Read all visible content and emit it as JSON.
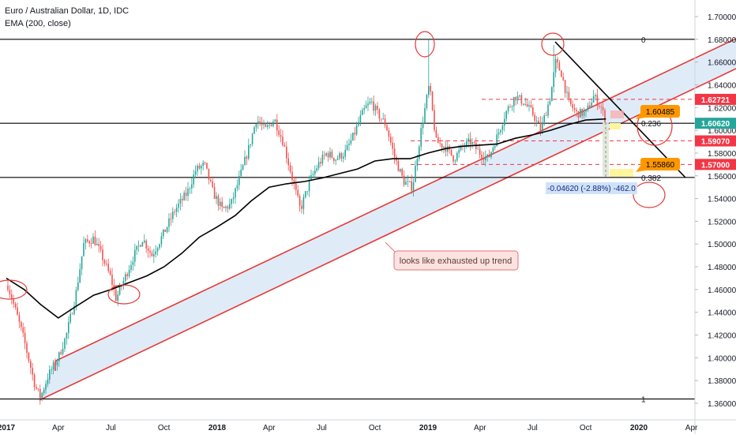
{
  "header": {
    "symbol_title": "Euro / Australian Dollar, 1D, IDC",
    "indicator": "EMA (200, close)"
  },
  "chart_data": {
    "type": "candlestick",
    "title": "Euro / Australian Dollar, 1D, IDC",
    "indicator": "EMA (200, close)",
    "grid": false,
    "ylim": [
      1.355,
      1.71
    ],
    "x_range": [
      "2017-01-01",
      "2020-04-30"
    ],
    "y_ticks": [
      "1.70000",
      "1.68000",
      "1.66000",
      "1.64000",
      "1.62000",
      "1.60000",
      "1.58000",
      "1.56000",
      "1.54000",
      "1.52000",
      "1.50000",
      "1.48000",
      "1.46000",
      "1.44000",
      "1.42000",
      "1.40000",
      "1.38000",
      "1.36000"
    ],
    "x_ticks": [
      {
        "label": "2017",
        "date": "2017-01-01"
      },
      {
        "label": "Apr",
        "date": "2017-04-01"
      },
      {
        "label": "Jul",
        "date": "2017-07-01"
      },
      {
        "label": "Oct",
        "date": "2017-10-01"
      },
      {
        "label": "2018",
        "date": "2018-01-01"
      },
      {
        "label": "Apr",
        "date": "2018-04-01"
      },
      {
        "label": "Jul",
        "date": "2018-07-01"
      },
      {
        "label": "Oct",
        "date": "2018-10-01"
      },
      {
        "label": "2019",
        "date": "2019-01-01"
      },
      {
        "label": "Apr",
        "date": "2019-04-01"
      },
      {
        "label": "Jul",
        "date": "2019-07-01"
      },
      {
        "label": "Oct",
        "date": "2019-10-01"
      },
      {
        "label": "2020",
        "date": "2020-01-01"
      },
      {
        "label": "Apr",
        "date": "2020-04-01"
      }
    ],
    "price_path": [
      [
        "2017-01-01",
        1.468
      ],
      [
        "2017-01-15",
        1.445
      ],
      [
        "2017-02-01",
        1.415
      ],
      [
        "2017-02-20",
        1.375
      ],
      [
        "2017-03-01",
        1.365
      ],
      [
        "2017-03-15",
        1.385
      ],
      [
        "2017-04-01",
        1.4
      ],
      [
        "2017-04-15",
        1.42
      ],
      [
        "2017-05-01",
        1.455
      ],
      [
        "2017-05-15",
        1.5
      ],
      [
        "2017-06-01",
        1.505
      ],
      [
        "2017-06-15",
        1.49
      ],
      [
        "2017-07-01",
        1.47
      ],
      [
        "2017-07-10",
        1.452
      ],
      [
        "2017-07-25",
        1.47
      ],
      [
        "2017-08-10",
        1.49
      ],
      [
        "2017-08-25",
        1.505
      ],
      [
        "2017-09-10",
        1.49
      ],
      [
        "2017-10-01",
        1.51
      ],
      [
        "2017-10-20",
        1.53
      ],
      [
        "2017-11-10",
        1.545
      ],
      [
        "2017-11-25",
        1.565
      ],
      [
        "2017-12-10",
        1.57
      ],
      [
        "2017-12-25",
        1.545
      ],
      [
        "2018-01-10",
        1.53
      ],
      [
        "2018-01-25",
        1.535
      ],
      [
        "2018-02-10",
        1.56
      ],
      [
        "2018-02-25",
        1.585
      ],
      [
        "2018-03-10",
        1.61
      ],
      [
        "2018-03-25",
        1.6
      ],
      [
        "2018-04-10",
        1.61
      ],
      [
        "2018-04-25",
        1.59
      ],
      [
        "2018-05-10",
        1.56
      ],
      [
        "2018-05-25",
        1.53
      ],
      [
        "2018-06-10",
        1.555
      ],
      [
        "2018-06-25",
        1.57
      ],
      [
        "2018-07-10",
        1.58
      ],
      [
        "2018-07-25",
        1.575
      ],
      [
        "2018-08-10",
        1.58
      ],
      [
        "2018-08-25",
        1.595
      ],
      [
        "2018-09-05",
        1.61
      ],
      [
        "2018-09-15",
        1.62
      ],
      [
        "2018-09-25",
        1.625
      ],
      [
        "2018-10-05",
        1.615
      ],
      [
        "2018-10-20",
        1.605
      ],
      [
        "2018-11-05",
        1.575
      ],
      [
        "2018-11-20",
        1.555
      ],
      [
        "2018-12-05",
        1.55
      ],
      [
        "2018-12-20",
        1.6
      ],
      [
        "2019-01-03",
        1.64
      ],
      [
        "2019-01-15",
        1.59
      ],
      [
        "2019-02-01",
        1.585
      ],
      [
        "2019-02-15",
        1.575
      ],
      [
        "2019-03-01",
        1.585
      ],
      [
        "2019-03-15",
        1.59
      ],
      [
        "2019-04-01",
        1.58
      ],
      [
        "2019-04-15",
        1.575
      ],
      [
        "2019-05-01",
        1.595
      ],
      [
        "2019-05-15",
        1.615
      ],
      [
        "2019-06-01",
        1.63
      ],
      [
        "2019-06-15",
        1.625
      ],
      [
        "2019-07-01",
        1.615
      ],
      [
        "2019-07-15",
        1.6
      ],
      [
        "2019-08-01",
        1.63
      ],
      [
        "2019-08-10",
        1.66
      ],
      [
        "2019-08-20",
        1.65
      ],
      [
        "2019-09-01",
        1.625
      ],
      [
        "2019-09-15",
        1.615
      ],
      [
        "2019-10-01",
        1.615
      ],
      [
        "2019-10-15",
        1.63
      ],
      [
        "2019-10-28",
        1.62
      ],
      [
        "2019-11-05",
        1.607
      ]
    ],
    "spike_highs": [
      [
        "2019-01-03",
        1.68
      ],
      [
        "2019-08-07",
        1.675
      ]
    ],
    "ema_path": [
      [
        "2017-01-01",
        1.47
      ],
      [
        "2017-02-01",
        1.46
      ],
      [
        "2017-03-01",
        1.447
      ],
      [
        "2017-04-01",
        1.435
      ],
      [
        "2017-05-01",
        1.445
      ],
      [
        "2017-06-01",
        1.455
      ],
      [
        "2017-07-01",
        1.46
      ],
      [
        "2017-08-01",
        1.466
      ],
      [
        "2017-09-01",
        1.472
      ],
      [
        "2017-10-01",
        1.48
      ],
      [
        "2017-11-01",
        1.492
      ],
      [
        "2017-12-01",
        1.506
      ],
      [
        "2018-01-01",
        1.515
      ],
      [
        "2018-02-01",
        1.525
      ],
      [
        "2018-03-01",
        1.538
      ],
      [
        "2018-04-01",
        1.55
      ],
      [
        "2018-05-01",
        1.553
      ],
      [
        "2018-06-01",
        1.555
      ],
      [
        "2018-07-01",
        1.558
      ],
      [
        "2018-08-01",
        1.562
      ],
      [
        "2018-09-01",
        1.566
      ],
      [
        "2018-10-01",
        1.573
      ],
      [
        "2018-11-01",
        1.575
      ],
      [
        "2018-12-01",
        1.575
      ],
      [
        "2019-01-01",
        1.58
      ],
      [
        "2019-02-01",
        1.584
      ],
      [
        "2019-03-01",
        1.586
      ],
      [
        "2019-04-01",
        1.587
      ],
      [
        "2019-05-01",
        1.588
      ],
      [
        "2019-06-01",
        1.593
      ],
      [
        "2019-07-01",
        1.596
      ],
      [
        "2019-08-01",
        1.6
      ],
      [
        "2019-09-01",
        1.605
      ],
      [
        "2019-10-01",
        1.609
      ],
      [
        "2019-11-05",
        1.61
      ]
    ],
    "levels": [
      {
        "label": "0",
        "value": 1.68,
        "color": "#000000",
        "style": "solid"
      },
      {
        "label": "0.236",
        "value": 1.6062,
        "color": "#000000",
        "style": "solid"
      },
      {
        "label": "0.382",
        "value": 1.5586,
        "color": "#000000",
        "style": "solid"
      },
      {
        "label": "1",
        "value": 1.3638,
        "color": "#000000",
        "style": "solid"
      },
      {
        "value": 1.62721,
        "color": "#f23645",
        "style": "dashed"
      },
      {
        "value": 1.5907,
        "color": "#f23645",
        "style": "dashed"
      },
      {
        "value": 1.57,
        "color": "#f23645",
        "style": "dashed"
      }
    ],
    "price_tags": [
      {
        "text": "1.62721",
        "value": 1.62721,
        "color": "#f23645"
      },
      {
        "text": "1.60620",
        "value": 1.6062,
        "color": "#26a69a"
      },
      {
        "text": "1.59070",
        "value": 1.5907,
        "color": "#f23645"
      },
      {
        "text": "1.57000",
        "value": 1.57,
        "color": "#f23645"
      }
    ],
    "callouts": [
      {
        "text": "1.60485",
        "color": "#ff9800"
      },
      {
        "text": "1.55860",
        "color": "#ff9800"
      }
    ],
    "measure_label": "-0.04620 (-2.88%) -462.0",
    "annotation": "looks like exhausted up trend"
  },
  "colors": {
    "up": "#26a69a",
    "down": "#ef5350",
    "ema": "#000000",
    "channel": "#e53935",
    "channel_fill": "#dbe7f7",
    "accent_orange": "#ff9800"
  }
}
